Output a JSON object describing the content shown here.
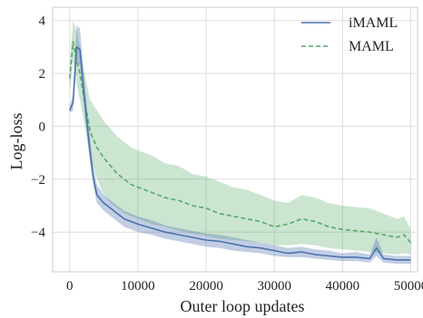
{
  "chart_data": {
    "type": "line",
    "xlabel": "Outer loop updates",
    "ylabel": "Log-loss",
    "xlim": [
      -2500,
      51000
    ],
    "ylim": [
      -5.5,
      4.5
    ],
    "xticks": [
      0,
      10000,
      20000,
      30000,
      40000,
      50000
    ],
    "xtick_labels": [
      "0",
      "10000",
      "20000",
      "30000",
      "40000",
      "50000"
    ],
    "yticks": [
      -4,
      -2,
      0,
      2,
      4
    ],
    "ytick_labels": [
      "−4",
      "−2",
      "0",
      "2",
      "4"
    ],
    "grid": true,
    "legend_position": "top-right",
    "series": [
      {
        "name": "iMAML",
        "color": "#4c72b0",
        "style": "solid",
        "x": [
          0,
          500,
          1000,
          1500,
          2000,
          2500,
          3000,
          3500,
          4000,
          5000,
          6000,
          7000,
          8000,
          9000,
          10000,
          12000,
          14000,
          16000,
          18000,
          20000,
          22000,
          24000,
          26000,
          28000,
          30000,
          32000,
          34000,
          36000,
          38000,
          40000,
          42000,
          44000,
          45000,
          46000,
          48000,
          50000
        ],
        "y": [
          0.6,
          0.9,
          3.0,
          2.9,
          1.5,
          0.2,
          -1.0,
          -2.0,
          -2.6,
          -2.9,
          -3.1,
          -3.3,
          -3.5,
          -3.6,
          -3.7,
          -3.85,
          -4.0,
          -4.1,
          -4.2,
          -4.3,
          -4.35,
          -4.45,
          -4.55,
          -4.6,
          -4.7,
          -4.8,
          -4.75,
          -4.85,
          -4.9,
          -4.95,
          -4.95,
          -5.0,
          -4.6,
          -5.0,
          -5.05,
          -5.05
        ],
        "lower": [
          0.5,
          0.6,
          2.4,
          2.3,
          1.0,
          -0.3,
          -1.4,
          -2.3,
          -2.9,
          -3.2,
          -3.4,
          -3.6,
          -3.8,
          -3.9,
          -4.0,
          -4.1,
          -4.25,
          -4.35,
          -4.45,
          -4.55,
          -4.6,
          -4.7,
          -4.75,
          -4.8,
          -4.9,
          -4.95,
          -4.95,
          -5.0,
          -5.05,
          -5.1,
          -5.1,
          -5.15,
          -4.9,
          -5.15,
          -5.2,
          -5.2
        ],
        "upper": [
          0.8,
          1.2,
          3.8,
          3.7,
          2.2,
          0.8,
          -0.5,
          -1.6,
          -2.2,
          -2.6,
          -2.8,
          -3.0,
          -3.2,
          -3.3,
          -3.4,
          -3.55,
          -3.75,
          -3.85,
          -3.95,
          -4.05,
          -4.1,
          -4.2,
          -4.3,
          -4.4,
          -4.5,
          -4.6,
          -4.55,
          -4.65,
          -4.7,
          -4.8,
          -4.75,
          -4.85,
          -4.2,
          -4.85,
          -4.9,
          -4.9
        ]
      },
      {
        "name": "MAML",
        "color": "#55a868",
        "style": "dashed",
        "x": [
          0,
          500,
          1000,
          1500,
          2000,
          2500,
          3000,
          4000,
          5000,
          6000,
          7000,
          8000,
          9000,
          10000,
          12000,
          14000,
          16000,
          18000,
          20000,
          22000,
          24000,
          26000,
          28000,
          30000,
          32000,
          34000,
          36000,
          38000,
          40000,
          42000,
          44000,
          46000,
          48000,
          49000,
          50000
        ],
        "y": [
          1.8,
          3.2,
          2.5,
          2.0,
          1.2,
          0.5,
          -0.2,
          -0.8,
          -1.2,
          -1.5,
          -1.8,
          -2.0,
          -2.2,
          -2.3,
          -2.5,
          -2.7,
          -2.8,
          -3.0,
          -3.1,
          -3.3,
          -3.4,
          -3.5,
          -3.6,
          -3.8,
          -3.7,
          -3.5,
          -3.6,
          -3.8,
          -3.9,
          -3.95,
          -4.0,
          -4.1,
          -4.2,
          -4.1,
          -4.4
        ],
        "lower": [
          1.3,
          2.5,
          1.6,
          1.0,
          0.3,
          -0.4,
          -1.2,
          -2.0,
          -2.6,
          -2.9,
          -3.1,
          -3.3,
          -3.4,
          -3.5,
          -3.7,
          -3.8,
          -3.95,
          -4.05,
          -4.15,
          -4.25,
          -4.3,
          -4.35,
          -4.4,
          -4.5,
          -4.5,
          -4.45,
          -4.5,
          -4.6,
          -4.65,
          -4.7,
          -4.75,
          -4.8,
          -4.85,
          -4.8,
          -4.85
        ],
        "upper": [
          2.4,
          4.0,
          3.6,
          3.0,
          2.2,
          1.6,
          1.0,
          0.6,
          0.2,
          -0.1,
          -0.4,
          -0.6,
          -0.8,
          -0.9,
          -1.1,
          -1.4,
          -1.5,
          -1.8,
          -1.9,
          -2.1,
          -2.3,
          -2.4,
          -2.6,
          -2.8,
          -2.9,
          -2.6,
          -2.7,
          -2.9,
          -3.0,
          -3.05,
          -3.1,
          -3.3,
          -3.5,
          -3.4,
          -3.9
        ]
      }
    ]
  }
}
